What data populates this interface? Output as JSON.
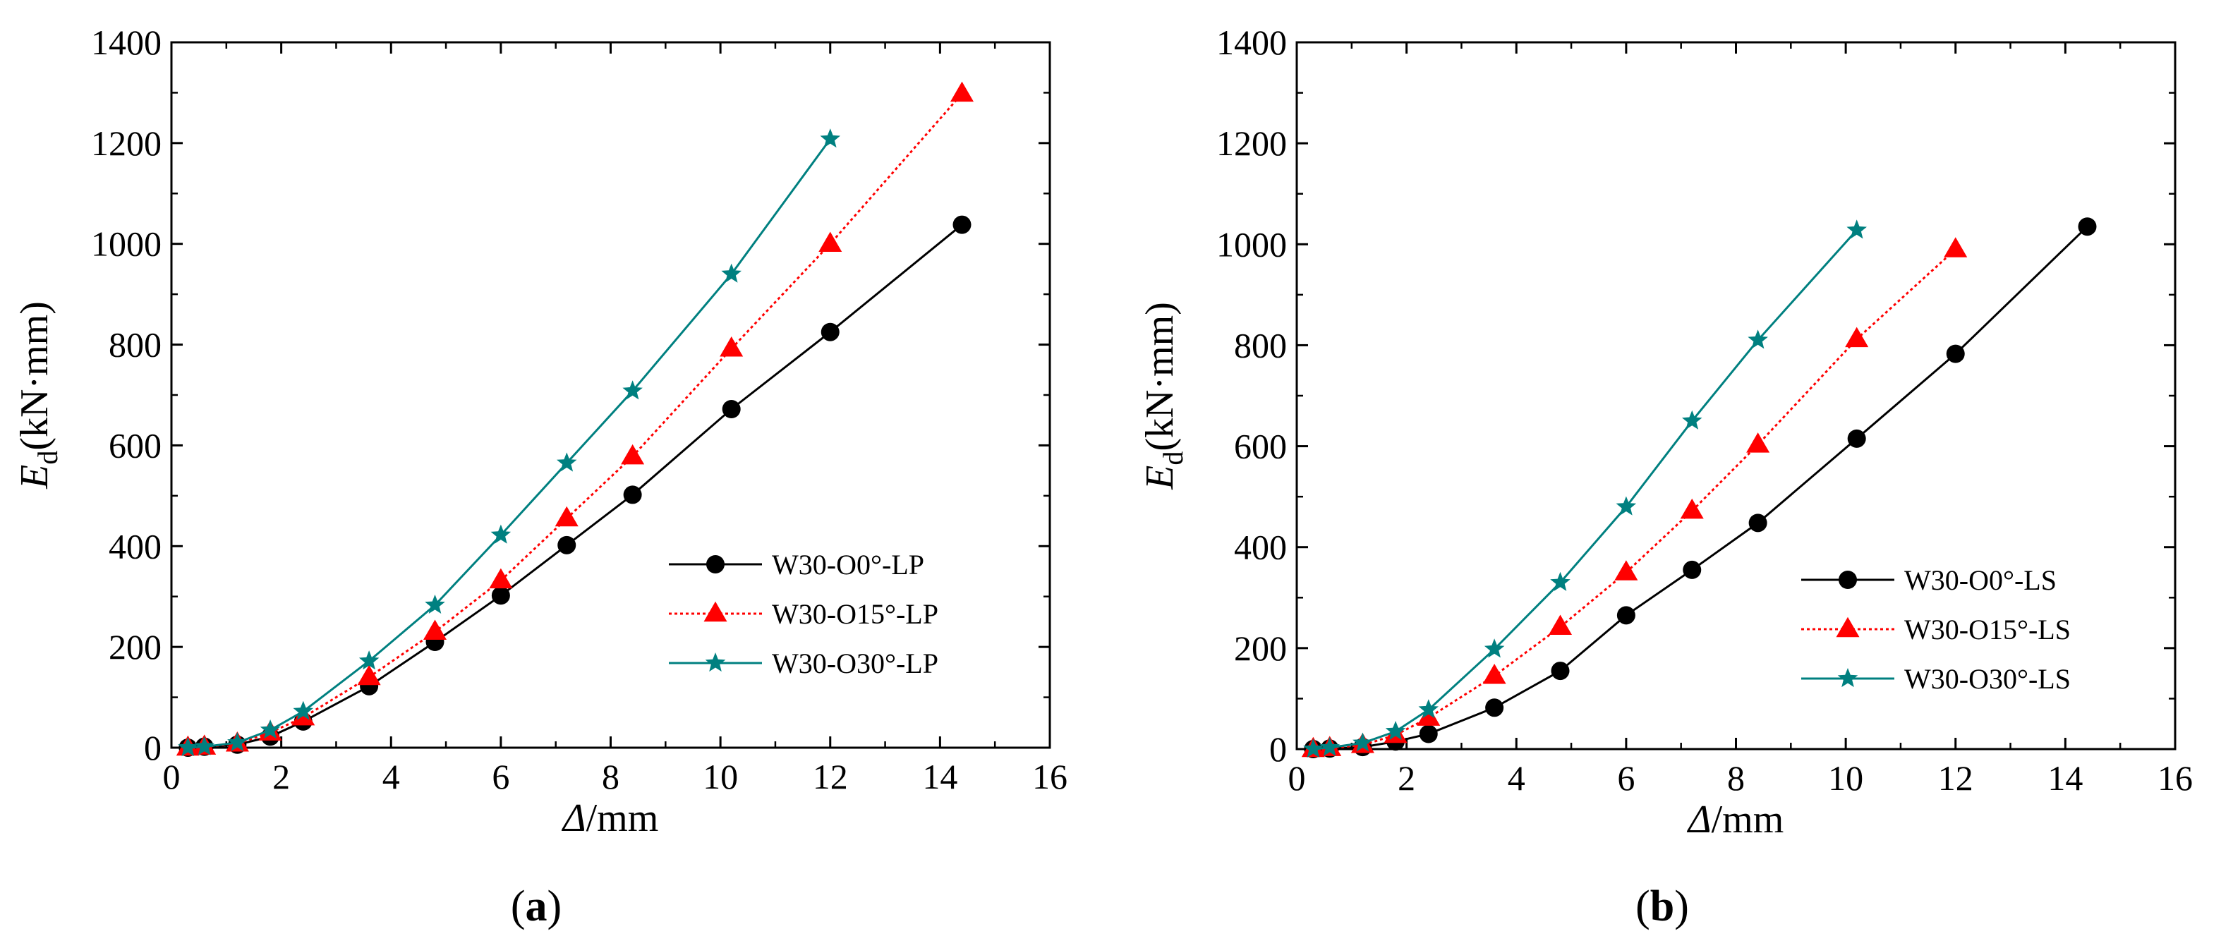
{
  "chart_data": [
    {
      "type": "line",
      "panel_label": {
        "open": "(",
        "letter": "a",
        "close": ")"
      },
      "xlabel": {
        "symbol": "Δ",
        "unit": "/mm"
      },
      "ylabel": {
        "symbol": "E",
        "subscript": "d",
        "unit": "(kN·mm)"
      },
      "xlim": [
        0,
        16
      ],
      "ylim": [
        0,
        1400
      ],
      "xticks": [
        0,
        2,
        4,
        6,
        8,
        10,
        12,
        14,
        16
      ],
      "yticks": [
        0,
        200,
        400,
        600,
        800,
        1000,
        1200,
        1400
      ],
      "grid": false,
      "legend_position": "lower-right",
      "series": [
        {
          "name": "W30-O0°-LP",
          "color": "#000000",
          "marker": "circle",
          "line_style": "solid",
          "x": [
            0.3,
            0.6,
            1.2,
            1.8,
            2.4,
            3.6,
            4.8,
            6.0,
            7.2,
            8.4,
            10.2,
            12.0,
            14.4
          ],
          "y": [
            0,
            2,
            6,
            22,
            52,
            122,
            210,
            302,
            402,
            502,
            672,
            825,
            1038
          ]
        },
        {
          "name": "W30-O15°-LP",
          "color": "#ff0000",
          "marker": "triangle",
          "line_style": "dotted",
          "x": [
            0.3,
            0.6,
            1.2,
            1.8,
            2.4,
            3.6,
            4.8,
            6.0,
            7.2,
            8.4,
            10.2,
            12.0,
            14.4
          ],
          "y": [
            0,
            2,
            8,
            30,
            60,
            140,
            230,
            332,
            455,
            578,
            792,
            1000,
            1298
          ]
        },
        {
          "name": "W30-O30°-LP",
          "color": "#008080",
          "marker": "star",
          "line_style": "solid",
          "x": [
            0.3,
            0.6,
            1.2,
            1.8,
            2.4,
            3.6,
            4.8,
            6.0,
            7.2,
            8.4,
            10.2,
            12.0
          ],
          "y": [
            0,
            2,
            10,
            35,
            72,
            172,
            283,
            422,
            565,
            708,
            940,
            1208
          ]
        }
      ]
    },
    {
      "type": "line",
      "panel_label": {
        "open": "(",
        "letter": "b",
        "close": ")"
      },
      "xlabel": {
        "symbol": "Δ",
        "unit": "/mm"
      },
      "ylabel": {
        "symbol": "E",
        "subscript": "d",
        "unit": "(kN·mm)"
      },
      "xlim": [
        0,
        16
      ],
      "ylim": [
        0,
        1400
      ],
      "xticks": [
        0,
        2,
        4,
        6,
        8,
        10,
        12,
        14,
        16
      ],
      "yticks": [
        0,
        200,
        400,
        600,
        800,
        1000,
        1200,
        1400
      ],
      "grid": false,
      "legend_position": "lower-right",
      "series": [
        {
          "name": "W30-O0°-LS",
          "color": "#000000",
          "marker": "circle",
          "line_style": "solid",
          "x": [
            0.3,
            0.6,
            1.2,
            1.8,
            2.4,
            3.6,
            4.8,
            6.0,
            7.2,
            8.4,
            10.2,
            12.0,
            14.4
          ],
          "y": [
            0,
            1,
            4,
            15,
            30,
            82,
            155,
            265,
            355,
            448,
            615,
            783,
            1035
          ]
        },
        {
          "name": "W30-O15°-LS",
          "color": "#ff0000",
          "marker": "triangle",
          "line_style": "dotted",
          "x": [
            0.3,
            0.6,
            1.2,
            1.8,
            2.4,
            3.6,
            4.8,
            6.0,
            7.2,
            8.4,
            10.2,
            12.0
          ],
          "y": [
            0,
            2,
            8,
            28,
            62,
            145,
            242,
            350,
            472,
            603,
            812,
            990
          ]
        },
        {
          "name": "W30-O30°-LS",
          "color": "#008080",
          "marker": "star",
          "line_style": "solid",
          "x": [
            0.3,
            0.6,
            1.2,
            1.8,
            2.4,
            3.6,
            4.8,
            6.0,
            7.2,
            8.4,
            10.2
          ],
          "y": [
            0,
            3,
            12,
            35,
            78,
            198,
            330,
            480,
            650,
            810,
            1028
          ]
        }
      ]
    }
  ]
}
